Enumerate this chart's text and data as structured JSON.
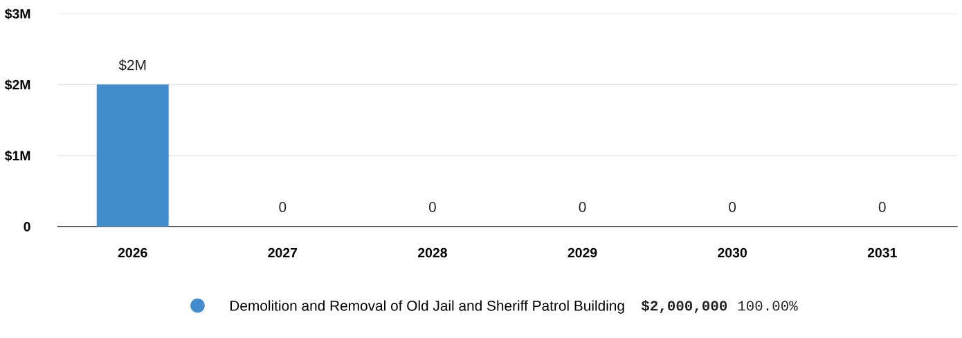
{
  "chart_data": {
    "type": "bar",
    "categories": [
      "2026",
      "2027",
      "2028",
      "2029",
      "2030",
      "2031"
    ],
    "series": [
      {
        "name": "Demolition and Removal of Old Jail and Sheriff Patrol Building",
        "color": "#438ccb",
        "values": [
          2000000,
          0,
          0,
          0,
          0,
          0
        ],
        "value_labels": [
          "$2M",
          "0",
          "0",
          "0",
          "0",
          "0"
        ]
      }
    ],
    "ylim": [
      0,
      3000000
    ],
    "yticks": [
      {
        "value": 0,
        "label": "0"
      },
      {
        "value": 1000000,
        "label": "$1M"
      },
      {
        "value": 2000000,
        "label": "$2M"
      },
      {
        "value": 3000000,
        "label": "$3M"
      }
    ],
    "grid": "y",
    "legend": "bottom",
    "annotations": [
      "$2,000,000",
      "100.00%"
    ]
  }
}
